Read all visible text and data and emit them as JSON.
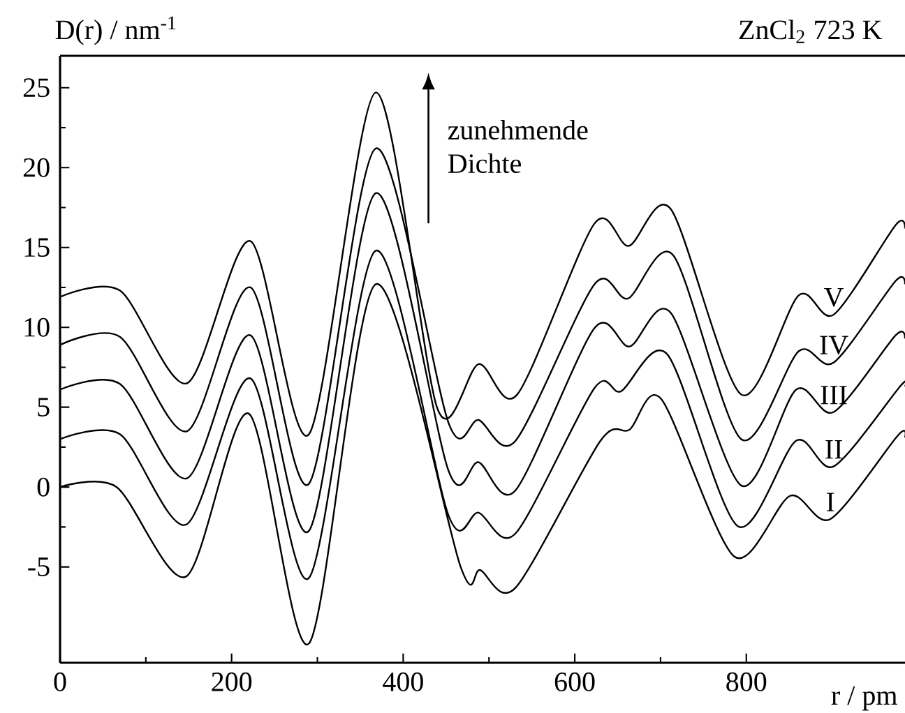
{
  "chart_data": {
    "type": "line",
    "title": "ZnCl$_{2}$ 723 K",
    "xlabel": "r / pm",
    "ylabel": "D(r) / nm$^{-1}$",
    "annotations": [
      "zunehmende Dichte"
    ],
    "xlim": [
      0,
      985
    ],
    "ylim": [
      -11,
      27
    ],
    "xticks": [
      0,
      200,
      400,
      600,
      800
    ],
    "yticks": [
      -5,
      0,
      5,
      10,
      15,
      20,
      25
    ],
    "series": [
      {
        "name": "I",
        "color": "#000000",
        "x": [
          0,
          66,
          147,
          220,
          290,
          368,
          467,
          490,
          531,
          630,
          664,
          701,
          786,
          851,
          898,
          977,
          985
        ],
        "values": [
          0,
          0,
          -5.6,
          4.6,
          -9.8,
          12.7,
          -5.0,
          -5.2,
          -6.3,
          2.9,
          3.6,
          5.5,
          -4.35,
          -0.55,
          -2.0,
          3.25,
          3.1
        ]
      },
      {
        "name": "II",
        "color": "#000000",
        "x": [
          0,
          70,
          147,
          222,
          290,
          368,
          453,
          488,
          531,
          623,
          654,
          708,
          790,
          858,
          902,
          980,
          985
        ],
        "values": [
          3.0,
          3.3,
          -2.35,
          6.8,
          -5.7,
          14.8,
          -1.8,
          -1.6,
          -2.9,
          6.2,
          6.0,
          8.3,
          -2.45,
          2.9,
          1.3,
          6.35,
          6.3
        ]
      },
      {
        "name": "III",
        "color": "#000000",
        "x": [
          0,
          70,
          148,
          222,
          290,
          368,
          453,
          488,
          531,
          623,
          664,
          712,
          794,
          858,
          902,
          974,
          985
        ],
        "values": [
          6.1,
          6.45,
          0.55,
          9.5,
          -2.75,
          18.4,
          1.0,
          1.55,
          -0.2,
          9.95,
          8.8,
          10.9,
          0.1,
          6.1,
          4.7,
          9.5,
          9.3
        ]
      },
      {
        "name": "IV",
        "color": "#000000",
        "x": [
          0,
          70,
          148,
          222,
          290,
          368,
          453,
          488,
          531,
          623,
          662,
          715,
          794,
          861,
          902,
          974,
          985
        ],
        "values": [
          8.9,
          9.4,
          3.5,
          12.5,
          0.2,
          21.2,
          4.0,
          4.2,
          2.9,
          12.7,
          11.8,
          14.5,
          3.0,
          8.5,
          7.8,
          12.9,
          12.7
        ]
      },
      {
        "name": "V",
        "color": "#000000",
        "x": [
          0,
          70,
          148,
          222,
          290,
          368,
          440,
          488,
          533,
          623,
          663,
          712,
          794,
          861,
          902,
          974,
          985
        ],
        "values": [
          11.9,
          12.3,
          6.5,
          15.4,
          3.3,
          24.7,
          4.9,
          7.7,
          5.8,
          16.5,
          15.1,
          17.4,
          5.8,
          12.0,
          10.8,
          16.4,
          16.2
        ]
      }
    ]
  }
}
